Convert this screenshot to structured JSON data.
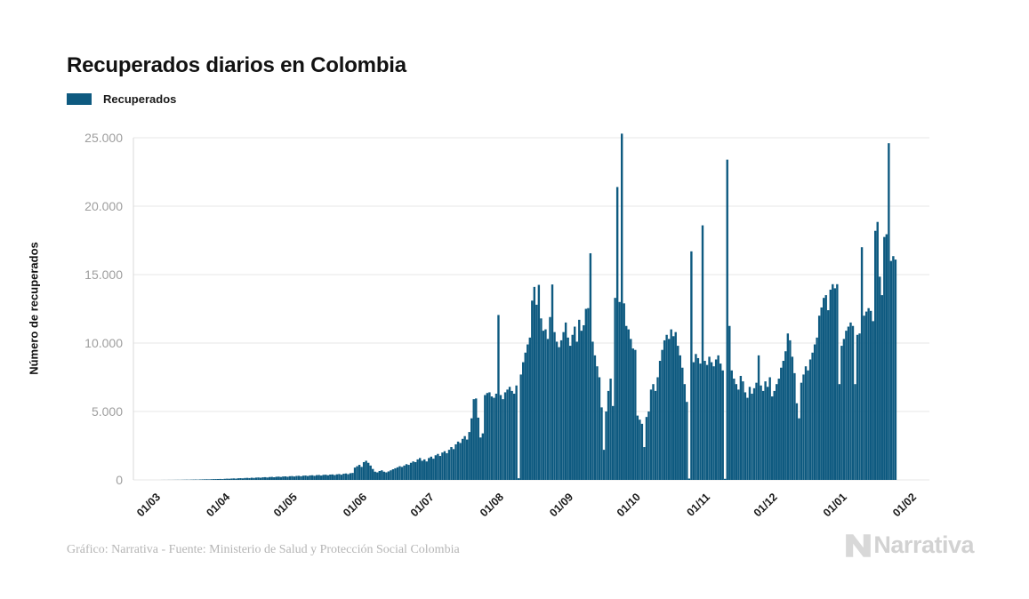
{
  "header": {
    "title": "Recuperados diarios en Colombia"
  },
  "footer": {
    "credit": "Gráfico: Narrativa - Fuente: Ministerio de Salud y Protección Social Colombia",
    "logo_text": "Narrativa"
  },
  "colors": {
    "bar": "#0e5a80",
    "grid": "#e7e7e7",
    "axis_line": "#d9d9d9",
    "ytick_text": "#9e9e9e",
    "xtick_text": "#1b1b1b",
    "logo": "#d8d8d8"
  },
  "chart_data": {
    "type": "bar",
    "title": "Recuperados diarios en Colombia",
    "series_name": "Recuperados",
    "xlabel": "",
    "ylabel": "Número de recuperados",
    "ylim": [
      0,
      25000
    ],
    "grid": "horizontal",
    "legend_position": "top-left",
    "x_start": "01/03 (daily values, one bar per day through late 01/02 axis end)",
    "yticks": [
      {
        "value": 0,
        "label": "0"
      },
      {
        "value": 5000,
        "label": "5.000"
      },
      {
        "value": 10000,
        "label": "10.000"
      },
      {
        "value": 15000,
        "label": "15.000"
      },
      {
        "value": 20000,
        "label": "20.000"
      },
      {
        "value": 25000,
        "label": "25.000"
      }
    ],
    "xticks": [
      {
        "day": 0,
        "label": "01/03"
      },
      {
        "day": 31,
        "label": "01/04"
      },
      {
        "day": 61,
        "label": "01/05"
      },
      {
        "day": 92,
        "label": "01/06"
      },
      {
        "day": 122,
        "label": "01/07"
      },
      {
        "day": 153,
        "label": "01/08"
      },
      {
        "day": 184,
        "label": "01/09"
      },
      {
        "day": 214,
        "label": "01/10"
      },
      {
        "day": 245,
        "label": "01/11"
      },
      {
        "day": 275,
        "label": "01/12"
      },
      {
        "day": 306,
        "label": "01/01"
      },
      {
        "day": 337,
        "label": "01/02"
      }
    ],
    "values": [
      0,
      0,
      0,
      0,
      0,
      0,
      2,
      3,
      2,
      5,
      4,
      6,
      8,
      10,
      8,
      12,
      15,
      18,
      14,
      20,
      25,
      28,
      22,
      32,
      38,
      42,
      48,
      40,
      52,
      58,
      62,
      65,
      70,
      60,
      80,
      90,
      85,
      100,
      110,
      95,
      120,
      130,
      115,
      140,
      150,
      135,
      160,
      145,
      170,
      180,
      160,
      190,
      200,
      175,
      210,
      220,
      195,
      230,
      240,
      215,
      250,
      260,
      230,
      270,
      280,
      250,
      290,
      300,
      265,
      310,
      320,
      285,
      330,
      340,
      300,
      350,
      360,
      320,
      370,
      380,
      340,
      390,
      400,
      355,
      410,
      430,
      380,
      450,
      470,
      420,
      490,
      510,
      900,
      1000,
      1100,
      950,
      1300,
      1400,
      1250,
      1050,
      800,
      600,
      550,
      650,
      700,
      600,
      550,
      620,
      700,
      780,
      850,
      920,
      1000,
      950,
      1050,
      1150,
      1100,
      1250,
      1350,
      1300,
      1500,
      1600,
      1400,
      1500,
      1350,
      1600,
      1700,
      1550,
      1800,
      1900,
      1750,
      2000,
      2100,
      1950,
      2200,
      2400,
      2250,
      2600,
      2800,
      2700,
      3000,
      3200,
      2950,
      3500,
      4500,
      5900,
      5950,
      4550,
      3100,
      3400,
      6200,
      6350,
      6400,
      6100,
      6000,
      6300,
      12050,
      6200,
      5900,
      6400,
      6600,
      6800,
      6500,
      6300,
      6900,
      120,
      7700,
      8600,
      9300,
      9900,
      10400,
      13100,
      14100,
      12800,
      14250,
      11800,
      10900,
      11000,
      10300,
      11900,
      14280,
      10800,
      10100,
      9700,
      10200,
      10800,
      11500,
      10400,
      9800,
      10600,
      11200,
      10100,
      11700,
      10900,
      11300,
      12500,
      12550,
      16560,
      10100,
      9100,
      8300,
      7500,
      5300,
      2200,
      5000,
      6500,
      7400,
      5400,
      13300,
      21400,
      13000,
      25300,
      12900,
      11250,
      11000,
      10300,
      9600,
      9500,
      4700,
      4400,
      4100,
      2400,
      4600,
      5000,
      6600,
      7000,
      6500,
      7500,
      8700,
      9500,
      10200,
      10600,
      10300,
      11000,
      10500,
      10800,
      9800,
      9100,
      8200,
      7000,
      5700,
      100,
      16700,
      8600,
      9200,
      8900,
      8500,
      18600,
      8700,
      8400,
      9000,
      8600,
      8300,
      8800,
      9100,
      8500,
      8000,
      80,
      23400,
      11250,
      8000,
      7400,
      7000,
      6600,
      7600,
      7200,
      6400,
      6000,
      6800,
      6300,
      6700,
      7100,
      9100,
      6900,
      6500,
      7200,
      6800,
      7500,
      6100,
      6500,
      7000,
      7400,
      8200,
      8700,
      9400,
      10700,
      10200,
      9000,
      7800,
      5600,
      4500,
      7100,
      7700,
      8300,
      8000,
      8800,
      9300,
      9900,
      10400,
      12000,
      12600,
      13300,
      13500,
      12400,
      13900,
      14300,
      14000,
      14300,
      7000,
      9800,
      10300,
      10900,
      11200,
      11500,
      11250,
      7000,
      10600,
      10700,
      17000,
      12000,
      12300,
      12550,
      12350,
      11600,
      18200,
      18850,
      14850,
      13500,
      17750,
      17950,
      24600,
      16000,
      16350,
      16100
    ]
  }
}
